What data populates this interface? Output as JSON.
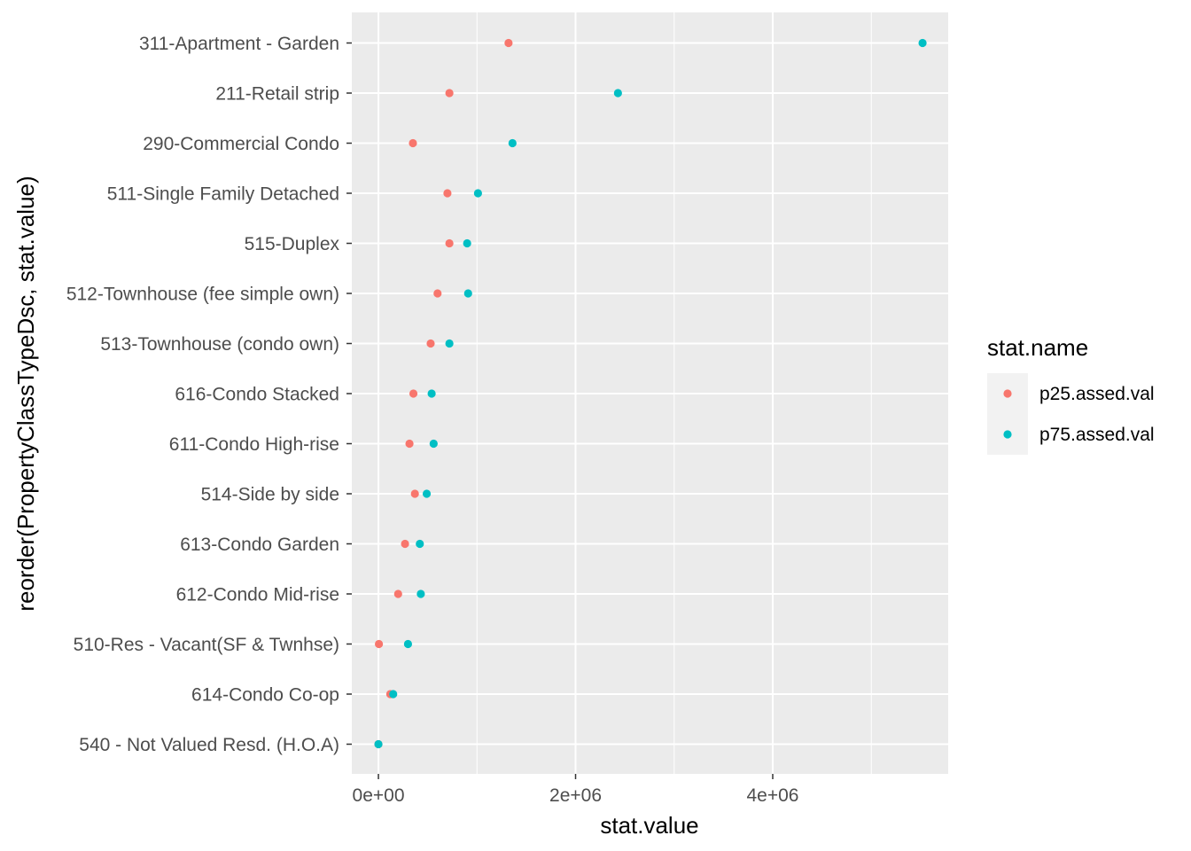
{
  "chart_data": {
    "type": "scatter",
    "title": "",
    "xlabel": "stat.value",
    "ylabel": "reorder(PropertyClassTypeDsc, stat.value)",
    "xlim": [
      -270000,
      5780000
    ],
    "x_ticks": [
      0,
      2000000,
      4000000
    ],
    "x_tick_labels": [
      "0e+00",
      "2e+06",
      "4e+06"
    ],
    "grid": true,
    "legend_title": "stat.name",
    "legend_position": "right",
    "categories": [
      "311-Apartment - Garden",
      "211-Retail strip",
      "290-Commercial Condo",
      "511-Single Family Detached",
      "515-Duplex",
      "512-Townhouse (fee simple own)",
      "513-Townhouse (condo own)",
      "616-Condo Stacked",
      "611-Condo High-rise",
      "514-Side by side",
      "613-Condo Garden",
      "612-Condo Mid-rise",
      "510-Res - Vacant(SF & Twnhse)",
      "614-Condo Co-op",
      "540 - Not Valued Resd. (H.O.A)"
    ],
    "series": [
      {
        "name": "p25.assed.val",
        "color": "#F8766D",
        "values": [
          1320000,
          720000,
          350000,
          700000,
          720000,
          600000,
          530000,
          355000,
          315000,
          370000,
          270000,
          200000,
          5000,
          120000,
          0
        ]
      },
      {
        "name": "p75.assed.val",
        "color": "#00BFC4",
        "values": [
          5520000,
          2430000,
          1360000,
          1010000,
          900000,
          910000,
          720000,
          540000,
          560000,
          490000,
          420000,
          430000,
          300000,
          150000,
          0
        ]
      }
    ]
  }
}
